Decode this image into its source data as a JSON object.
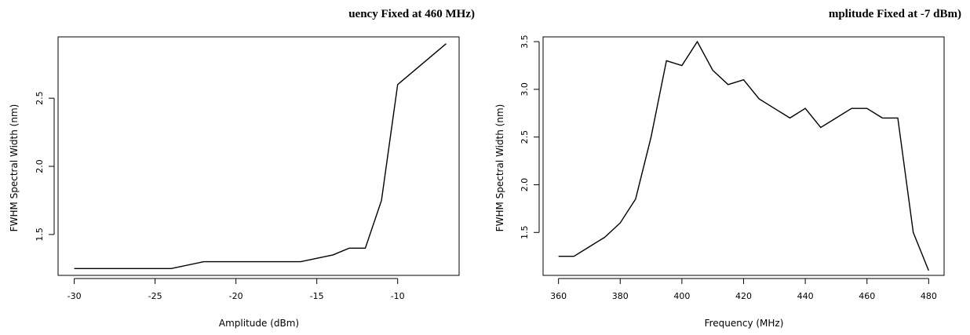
{
  "chart_data": [
    {
      "type": "line",
      "title": "uency Fixed at 460 MHz)",
      "xlabel": "Amplitude (dBm)",
      "ylabel": "FWHM Spectral Width (nm)",
      "xlim": [
        -31,
        -6.2
      ],
      "ylim": [
        1.2,
        2.95
      ],
      "xticks": [
        -30,
        -25,
        -20,
        -15,
        -10
      ],
      "yticks": [
        1.5,
        2.0,
        2.5
      ],
      "xtick_labels": [
        "-30",
        "-25",
        "-20",
        "-15",
        "-10"
      ],
      "ytick_labels": [
        "1.5",
        "2.0",
        "2.5"
      ],
      "grid": false,
      "x": [
        -30,
        -24,
        -22,
        -20,
        -16,
        -14,
        -13,
        -12,
        -11,
        -10,
        -7
      ],
      "y": [
        1.25,
        1.25,
        1.3,
        1.3,
        1.3,
        1.35,
        1.4,
        1.4,
        1.75,
        2.6,
        2.9
      ]
    },
    {
      "type": "line",
      "title": "mplitude Fixed at -7 dBm)",
      "xlabel": "Frequency (MHz)",
      "ylabel": "FWHM Spectral Width (nm)",
      "xlim": [
        355,
        485
      ],
      "ylim": [
        1.05,
        3.55
      ],
      "xticks": [
        360,
        380,
        400,
        420,
        440,
        460,
        480
      ],
      "yticks": [
        1.5,
        2.0,
        2.5,
        3.0,
        3.5
      ],
      "xtick_labels": [
        "360",
        "380",
        "400",
        "420",
        "440",
        "460",
        "480"
      ],
      "ytick_labels": [
        "1.5",
        "2.0",
        "2.5",
        "3.0",
        "3.5"
      ],
      "grid": false,
      "x": [
        360,
        365,
        370,
        375,
        380,
        385,
        390,
        395,
        400,
        405,
        410,
        415,
        420,
        425,
        430,
        435,
        440,
        445,
        450,
        455,
        460,
        465,
        470,
        475,
        480
      ],
      "y": [
        1.25,
        1.25,
        1.35,
        1.45,
        1.6,
        1.85,
        2.5,
        3.3,
        3.25,
        3.5,
        3.2,
        3.05,
        3.1,
        2.9,
        2.8,
        2.7,
        2.8,
        2.6,
        2.7,
        2.8,
        2.8,
        2.7,
        2.7,
        1.5,
        1.1
      ]
    }
  ]
}
